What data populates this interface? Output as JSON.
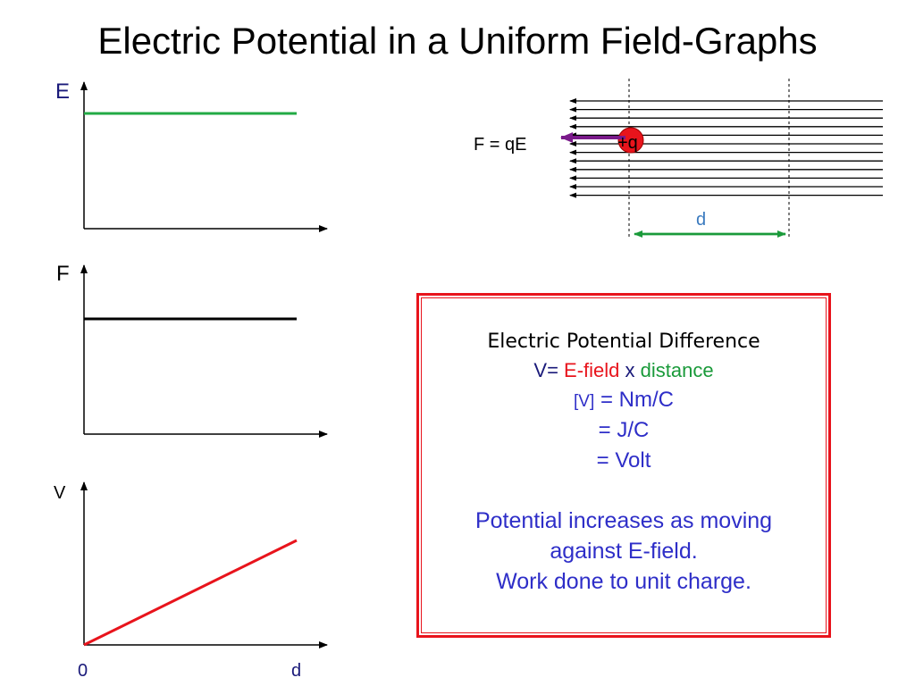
{
  "title": "Electric Potential in a Uniform Field-Graphs",
  "graphs": {
    "e_label": "E",
    "f_label": "F",
    "v_label": "V",
    "x_zero": "0",
    "x_end": "d"
  },
  "chart_data": [
    {
      "type": "line",
      "ylabel": "E",
      "xlabel": "",
      "x": [
        0,
        1
      ],
      "y": [
        1,
        1
      ],
      "color": "#22aa44"
    },
    {
      "type": "line",
      "ylabel": "F",
      "xlabel": "",
      "x": [
        0,
        1
      ],
      "y": [
        1,
        1
      ],
      "color": "#000000"
    },
    {
      "type": "line",
      "ylabel": "V",
      "xlabel": "d",
      "x": [
        0,
        1
      ],
      "y": [
        0,
        1
      ],
      "color": "#e8141c"
    }
  ],
  "field_diagram": {
    "force_label": "F = qE",
    "charge_label": "+q",
    "distance_label": "d",
    "charge_color": "#e8141c",
    "force_arrow_color": "#7a1a8a",
    "distance_color": "#1a9a3a",
    "field_line_count": 12
  },
  "box": {
    "heading": "Electric Potential Difference",
    "eq_v": "V=",
    "eq_efield": "E-field",
    "eq_x": "x",
    "eq_distance": "distance",
    "unit_v": "[V]",
    "unit_1": "= Nm/C",
    "unit_2": "= J/C",
    "unit_3": "= Volt",
    "note_1": "Potential increases as moving",
    "note_2": "against E-field.",
    "note_3": "Work done to unit charge.",
    "border_color": "#e8141c"
  }
}
